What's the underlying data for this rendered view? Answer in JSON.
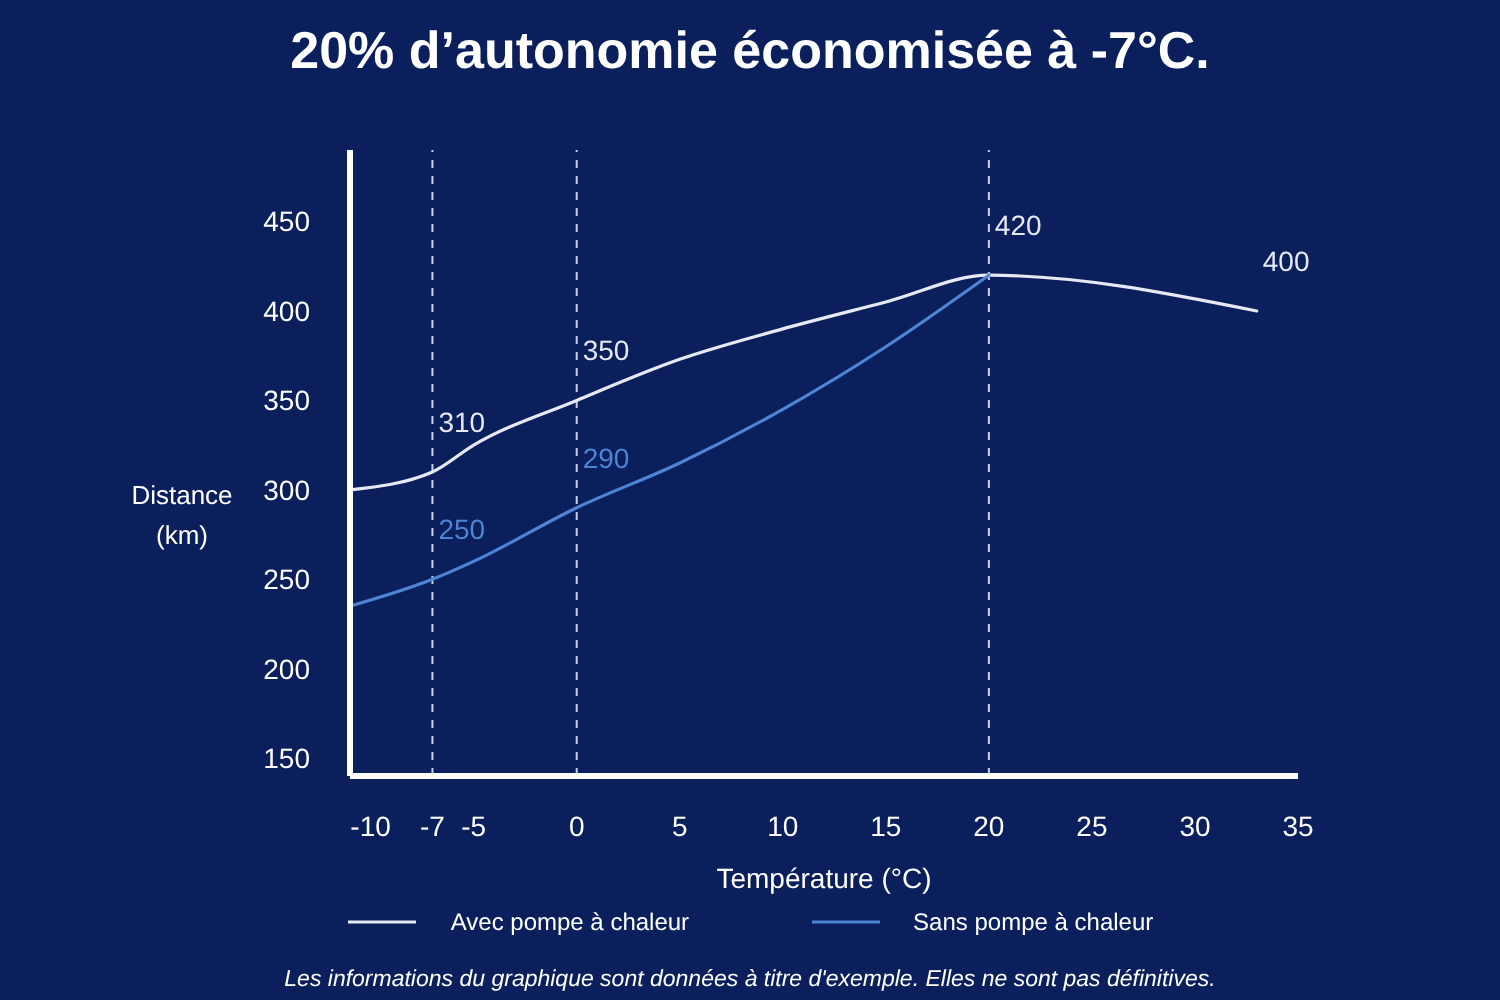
{
  "chart_data": {
    "type": "line",
    "title": "20% d’autonomie économisée à -7°C.",
    "xlabel": "Température (°C)",
    "ylabel": "Distance (km)",
    "annotations": [
      "Les informations du graphique sont données à titre d'exemple. Elles ne sont pas définitives."
    ],
    "x": [
      -11,
      -7,
      -5,
      0,
      5,
      10,
      15,
      20,
      33
    ],
    "series": [
      {
        "name": "Avec pompe à chaleur",
        "color": "#e6e9f2",
        "values": [
          300,
          310,
          325,
          350,
          373,
          390,
          405,
          420,
          400
        ],
        "value_labels": [
          null,
          "310",
          null,
          "350",
          null,
          null,
          null,
          "420",
          "400"
        ]
      },
      {
        "name": "Sans pompe à chaleur",
        "color": "#4d84d4",
        "values": [
          235,
          250,
          260,
          290,
          315,
          345,
          380,
          420,
          null
        ],
        "value_labels": [
          null,
          "250",
          null,
          "290",
          null,
          null,
          null,
          null,
          null
        ]
      }
    ],
    "xlim": [
      -11,
      35
    ],
    "xticks": [
      -10,
      -7,
      -5,
      0,
      5,
      10,
      15,
      20,
      25,
      30,
      35
    ],
    "ylim": [
      140,
      490
    ],
    "yticks": [
      150,
      200,
      250,
      300,
      350,
      400,
      450
    ],
    "ref_lines": [
      {
        "axis": "x",
        "value": -7,
        "color": "#c8d0e8",
        "line_style": "dashed"
      },
      {
        "axis": "x",
        "value": 0,
        "color": "#c8d0e8",
        "line_style": "dashed"
      },
      {
        "axis": "x",
        "value": 20,
        "color": "#c8d0e8",
        "line_style": "dashed"
      }
    ],
    "grid": false,
    "legend": "bottom",
    "marker": "none",
    "line_style": "solid"
  }
}
